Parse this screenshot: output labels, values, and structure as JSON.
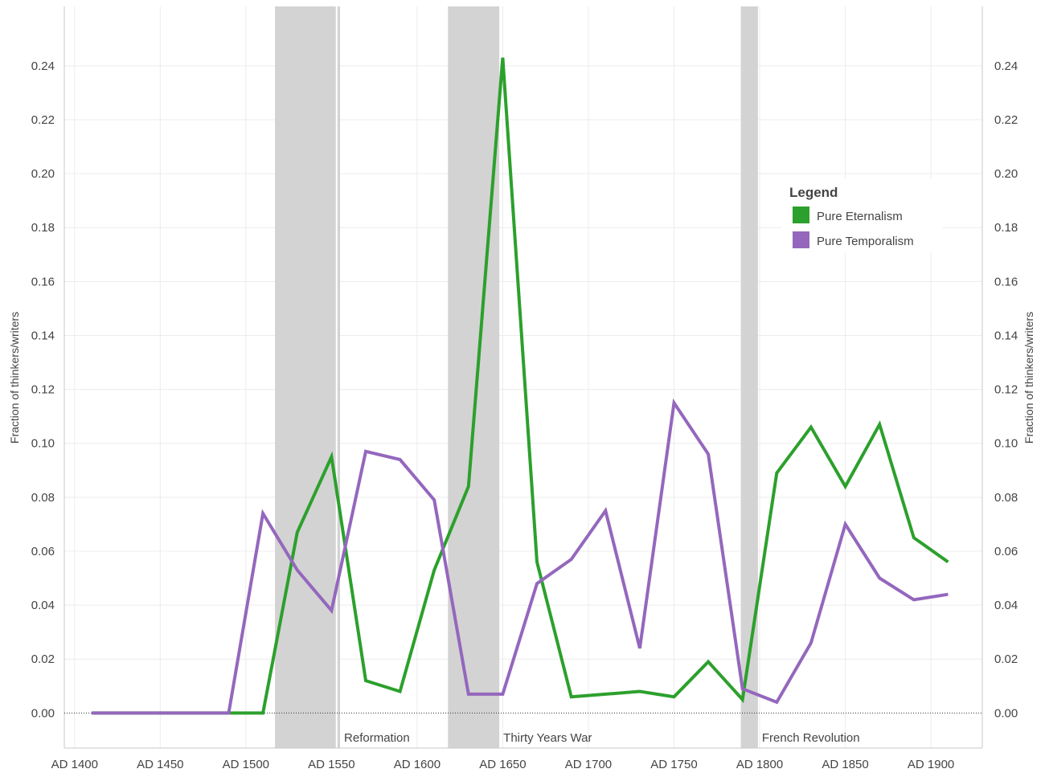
{
  "chart_data": {
    "type": "line",
    "x_unit": "year",
    "xlim": [
      1394,
      1930
    ],
    "ylim": [
      -0.013,
      0.262
    ],
    "grid": true,
    "dual_y_axis": true,
    "x_ticks": [
      {
        "value": 1400,
        "label": "AD 1400"
      },
      {
        "value": 1450,
        "label": "AD 1450"
      },
      {
        "value": 1500,
        "label": "AD 1500"
      },
      {
        "value": 1550,
        "label": "AD 1550"
      },
      {
        "value": 1600,
        "label": "AD 1600"
      },
      {
        "value": 1650,
        "label": "AD 1650"
      },
      {
        "value": 1700,
        "label": "AD 1700"
      },
      {
        "value": 1750,
        "label": "AD 1750"
      },
      {
        "value": 1800,
        "label": "AD 1800"
      },
      {
        "value": 1850,
        "label": "AD 1850"
      },
      {
        "value": 1900,
        "label": "AD 1900"
      }
    ],
    "y_ticks": [
      {
        "value": 0.0,
        "label": "0.00"
      },
      {
        "value": 0.02,
        "label": "0.02"
      },
      {
        "value": 0.04,
        "label": "0.04"
      },
      {
        "value": 0.06,
        "label": "0.06"
      },
      {
        "value": 0.08,
        "label": "0.08"
      },
      {
        "value": 0.1,
        "label": "0.10"
      },
      {
        "value": 0.12,
        "label": "0.12"
      },
      {
        "value": 0.14,
        "label": "0.14"
      },
      {
        "value": 0.16,
        "label": "0.16"
      },
      {
        "value": 0.18,
        "label": "0.18"
      },
      {
        "value": 0.2,
        "label": "0.20"
      },
      {
        "value": 0.22,
        "label": "0.22"
      },
      {
        "value": 0.24,
        "label": "0.24"
      }
    ],
    "ylabel_left": "Fraction of thinkers/writers",
    "ylabel_right": "Fraction of thinkers/writers",
    "legend": {
      "title": "Legend",
      "placement": "top-right"
    },
    "bands": [
      {
        "label": "Reformation",
        "start": 1517,
        "end": 1555,
        "separator": 1553
      },
      {
        "label": "Thirty Years War",
        "start": 1618,
        "end": 1648
      },
      {
        "label": "French Revolution",
        "start": 1789,
        "end": 1799
      }
    ],
    "band_color": "#d3d3d3",
    "series": [
      {
        "name": "Pure Eternalism",
        "color": "#2ca02c",
        "x": [
          1410,
          1430,
          1450,
          1470,
          1490,
          1510,
          1530,
          1550,
          1570,
          1590,
          1610,
          1630,
          1650,
          1670,
          1690,
          1710,
          1730,
          1750,
          1770,
          1790,
          1810,
          1830,
          1850,
          1870,
          1890,
          1910
        ],
        "values": [
          0,
          0,
          0,
          0,
          0,
          0,
          0.067,
          0.095,
          0.012,
          0.008,
          0.053,
          0.084,
          0.243,
          0.056,
          0.006,
          0.007,
          0.008,
          0.006,
          0.019,
          0.005,
          0.089,
          0.106,
          0.084,
          0.107,
          0.065,
          0.056
        ]
      },
      {
        "name": "Pure Temporalism",
        "color": "#9467bd",
        "x": [
          1410,
          1430,
          1450,
          1470,
          1490,
          1510,
          1530,
          1550,
          1570,
          1590,
          1610,
          1630,
          1650,
          1670,
          1690,
          1710,
          1730,
          1750,
          1770,
          1790,
          1810,
          1830,
          1850,
          1870,
          1890,
          1910
        ],
        "values": [
          0,
          0,
          0,
          0,
          0,
          0.074,
          0.053,
          0.038,
          0.097,
          0.094,
          0.079,
          0.007,
          0.007,
          0.048,
          0.057,
          0.075,
          0.024,
          0.115,
          0.096,
          0.009,
          0.004,
          0.026,
          0.07,
          0.05,
          0.042,
          0.044
        ]
      }
    ]
  }
}
